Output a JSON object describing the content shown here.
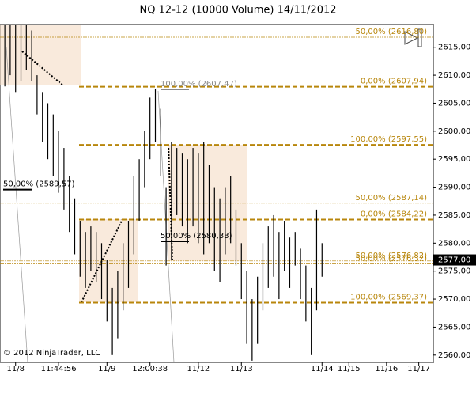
{
  "chart_data": {
    "type": "hilo",
    "title": "NQ 12-12 (10000 Volume)  14/11/2012",
    "copyright": "© 2012 NinjaTrader, LLC",
    "color": "#000000",
    "ylim": [
      2558.7,
      2619.2
    ],
    "yticks": [
      {
        "value": 2560,
        "label": "2560,00"
      },
      {
        "value": 2565,
        "label": "2565,00"
      },
      {
        "value": 2570,
        "label": "2570,00"
      },
      {
        "value": 2575,
        "label": "2575,00"
      },
      {
        "value": 2580,
        "label": "2580,00"
      },
      {
        "value": 2585,
        "label": "2585,00"
      },
      {
        "value": 2590,
        "label": "2590,00"
      },
      {
        "value": 2595,
        "label": "2595,00"
      },
      {
        "value": 2600,
        "label": "2600,00"
      },
      {
        "value": 2605,
        "label": "2605,00"
      },
      {
        "value": 2610,
        "label": "2610,00"
      },
      {
        "value": 2615,
        "label": "2615,00"
      }
    ],
    "xlim": [
      -0.9,
      79.7
    ],
    "xticks": [
      {
        "value": 2,
        "label": "11/8"
      },
      {
        "value": 10,
        "label": "11:44:56"
      },
      {
        "value": 19,
        "label": "11/9"
      },
      {
        "value": 27,
        "label": "12:00:38"
      },
      {
        "value": 36,
        "label": "11/12"
      },
      {
        "value": 44,
        "label": "11/13"
      },
      {
        "value": 59,
        "label": "11/14"
      },
      {
        "value": 64,
        "label": "11/15"
      },
      {
        "value": 71,
        "label": "11/16"
      },
      {
        "value": 77,
        "label": "11/17"
      }
    ],
    "low": [
      2608,
      2610,
      2607,
      2609,
      2611,
      2609,
      2603,
      2598,
      2595,
      2592,
      2589,
      2586,
      2582,
      2578,
      2574,
      2572,
      2575,
      2573,
      2570,
      2566,
      2560,
      2563,
      2568,
      2572,
      2578,
      2584,
      2590,
      2595,
      2598,
      2592,
      2576,
      2577,
      2585,
      2583,
      2580,
      2583,
      2580,
      2578,
      2580,
      2575,
      2573,
      2578,
      2580,
      2576,
      2570,
      2562,
      2559,
      2562,
      2568,
      2572,
      2574,
      2570,
      2575,
      2572,
      2576,
      2570,
      2566,
      2560,
      2568,
      2574
    ],
    "high": [
      2619,
      2619,
      2619,
      2619,
      2619,
      2618,
      2610,
      2607,
      2605,
      2603,
      2600,
      2597,
      2592,
      2588,
      2584,
      2582,
      2583,
      2582,
      2580,
      2577,
      2572,
      2575,
      2580,
      2584,
      2592,
      2595,
      2600,
      2606,
      2607.5,
      2604,
      2590,
      2598,
      2597,
      2596,
      2595,
      2597,
      2596,
      2598,
      2594,
      2590,
      2588,
      2590,
      2592,
      2586,
      2580,
      2575,
      2570,
      2574,
      2580,
      2583,
      2585,
      2582,
      2584,
      2581,
      2582,
      2579,
      2576,
      2572,
      2586,
      2580
    ],
    "last_price": {
      "value": 2577,
      "label": "2577,00"
    },
    "fib_levels": [
      {
        "label": "50,00% (2616,80)",
        "value": 2616.8
      },
      {
        "label": "0,00% (2607,94)",
        "value": 2607.94
      },
      {
        "label": "100,00% (2597,55)",
        "value": 2597.55
      },
      {
        "label": "50,00% (2587,14)",
        "value": 2587.14
      },
      {
        "label": "0,00% (2584,22)",
        "value": 2584.22
      },
      {
        "label": "50,00% (2576,82)",
        "value": 2576.82
      },
      {
        "label": "50,00% (2576,32)",
        "value": 2576.32
      },
      {
        "label": "100,00% (2569,37)",
        "value": 2569.37
      }
    ],
    "left_labels": [
      {
        "label": "100,00% (2607,47)",
        "value": 2607.47
      },
      {
        "label": "50,00% (2589,57)",
        "value": 2589.57
      },
      {
        "label": "50,00% (2580,33)",
        "value": 2580.33
      }
    ]
  }
}
